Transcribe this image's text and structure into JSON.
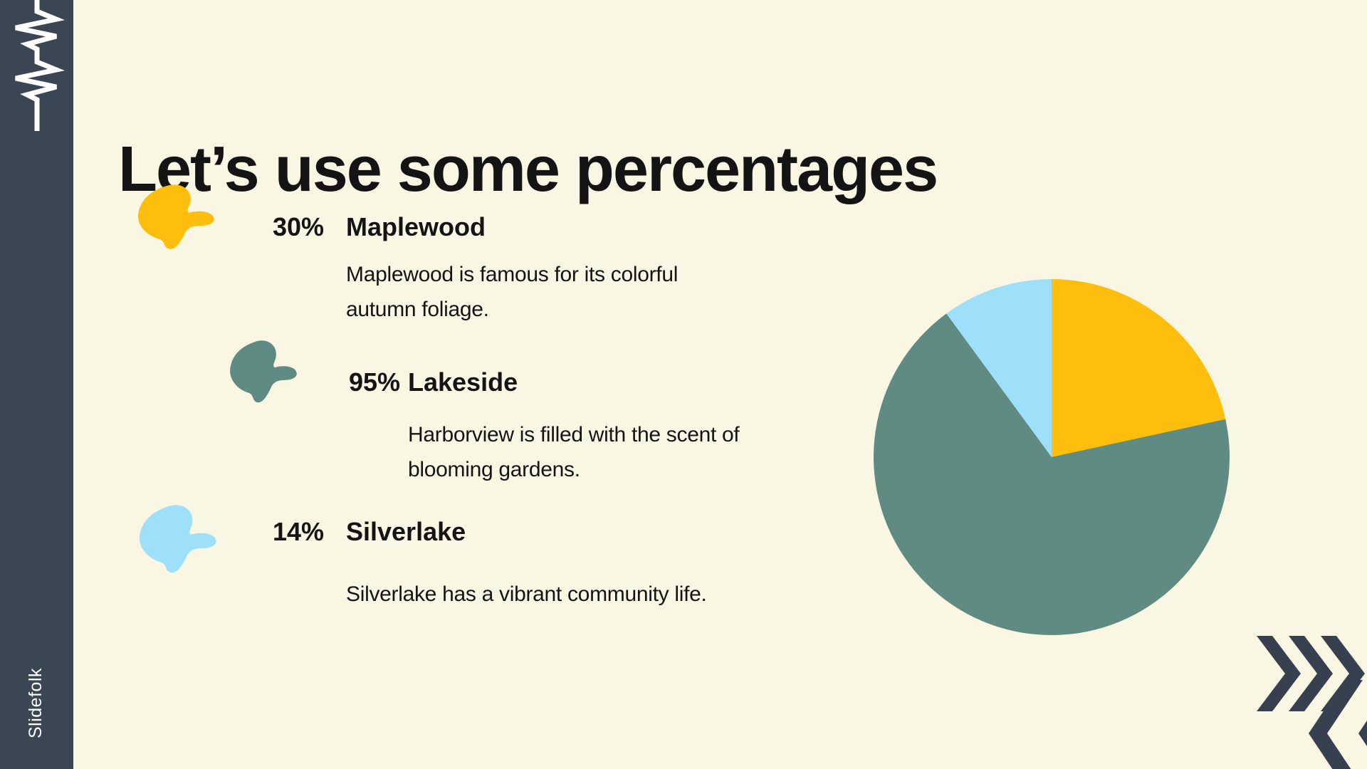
{
  "slide": {
    "brand": "Slidefolk",
    "title": "Let’s use some percentages",
    "items": [
      {
        "pct": "30%",
        "name": "Maplewood",
        "desc_lines": [
          "Maplewood is famous for its colorful",
          "autumn foliage."
        ]
      },
      {
        "pct": "95%",
        "name": "Lakeside",
        "desc_lines": [
          "Harborview is filled with the scent of",
          "blooming gardens."
        ]
      },
      {
        "pct": "14%",
        "name": "Silverlake",
        "desc_lines": [
          "Silverlake has a vibrant community life."
        ]
      }
    ]
  },
  "chart_data": {
    "type": "pie",
    "title": "",
    "categories": [
      "Maplewood",
      "Lakeside",
      "Silverlake"
    ],
    "values": [
      30,
      95,
      14
    ],
    "colors": [
      "#FDBE0D",
      "#608B82",
      "#9EDFFA"
    ],
    "start_angle_deg": 0,
    "direction": "clockwise",
    "normalization": "slices scaled to sum of values (139)",
    "legend_position": "none"
  },
  "colors": {
    "background": "#FAF6E4",
    "sidebar": "#3B4654",
    "text": "#141414",
    "chevron": "#36404E",
    "accent_yellow": "#FDBE0D",
    "accent_teal": "#608B82",
    "accent_blue": "#9EDFFA"
  }
}
